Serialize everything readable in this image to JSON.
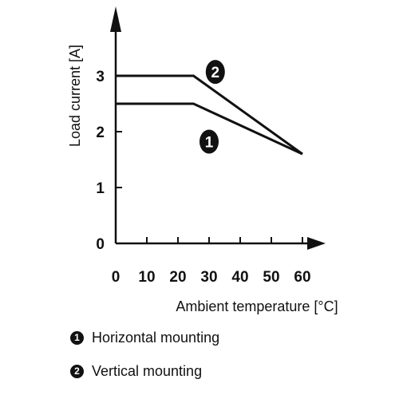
{
  "chart_data": {
    "type": "line",
    "xlabel": "Ambient temperature [°C]",
    "ylabel": "Load current [A]",
    "xlim": [
      0,
      60
    ],
    "ylim": [
      0,
      3
    ],
    "x_ticks": [
      "0",
      "10",
      "20",
      "30",
      "40",
      "50",
      "60"
    ],
    "y_ticks": [
      "0",
      "1",
      "2",
      "3"
    ],
    "grid": false,
    "series": [
      {
        "marker": "1",
        "name": "Horizontal mounting",
        "x": [
          0,
          25,
          60
        ],
        "y": [
          2.5,
          2.5,
          1.6
        ]
      },
      {
        "marker": "2",
        "name": "Vertical mounting",
        "x": [
          0,
          25,
          60
        ],
        "y": [
          3.0,
          3.0,
          1.6
        ]
      }
    ],
    "colors": {
      "line": "#111111",
      "marker_fill": "#111111",
      "marker_text": "#ffffff"
    }
  }
}
